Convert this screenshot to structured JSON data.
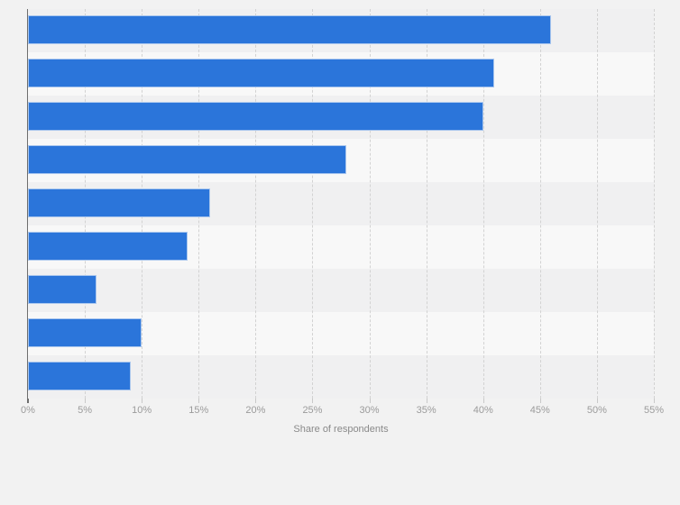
{
  "page": {
    "background": "#f2f2f2"
  },
  "chart_data": {
    "type": "bar",
    "orientation": "horizontal",
    "title": "",
    "xlabel": "Share of respondents",
    "ylabel": "",
    "unit": "%",
    "categories": [
      "",
      "",
      "",
      "",
      "",
      "",
      "",
      "",
      ""
    ],
    "values": [
      46,
      41,
      40,
      28,
      16,
      14,
      6,
      10,
      9
    ],
    "xlim": [
      0,
      55
    ],
    "x_tick_step": 5,
    "x_tick_labels": [
      "0%",
      "5%",
      "10%",
      "15%",
      "20%",
      "25%",
      "30%",
      "35%",
      "40%",
      "45%",
      "50%",
      "55%"
    ],
    "grid": "vertical-dashed",
    "legend": "none",
    "row_striping": true,
    "colors": {
      "bar": "#2b75da",
      "bar_border": "#aac7ee",
      "grid": "#d2d2d2",
      "axis_line": "#6e6e6e",
      "tick_label": "#9b9b9b",
      "axis_title": "#8a8a8a",
      "stripe_dark": "#f0f0f1",
      "stripe_light": "#f8f8f8",
      "background": "#f2f2f2"
    }
  }
}
